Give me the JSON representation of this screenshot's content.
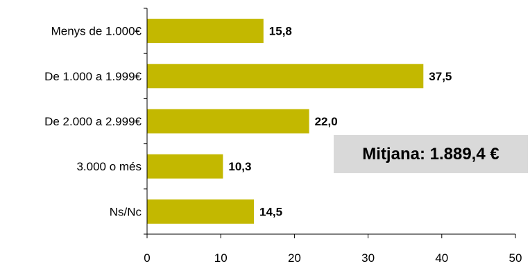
{
  "chart_data": {
    "type": "bar",
    "orientation": "horizontal",
    "categories": [
      "Menys de 1.000€",
      "De 1.000 a 1.999€",
      "De 2.000 a 2.999€",
      "3.000 o més",
      "Ns/Nc"
    ],
    "values": [
      15.8,
      37.5,
      22.0,
      10.3,
      14.5
    ],
    "value_labels": [
      "15,8",
      "37,5",
      "22,0",
      "10,3",
      "14,5"
    ],
    "x_ticks": [
      "0",
      "10",
      "20",
      "30",
      "40",
      "50"
    ],
    "xlim": [
      0,
      50
    ],
    "title": "",
    "xlabel": "",
    "ylabel": "",
    "grid": false,
    "legend": "none",
    "bar_color": "#c3b800",
    "annotation": "Mitjana: 1.889,4 €",
    "annotation_background": "#d9d9d9"
  }
}
